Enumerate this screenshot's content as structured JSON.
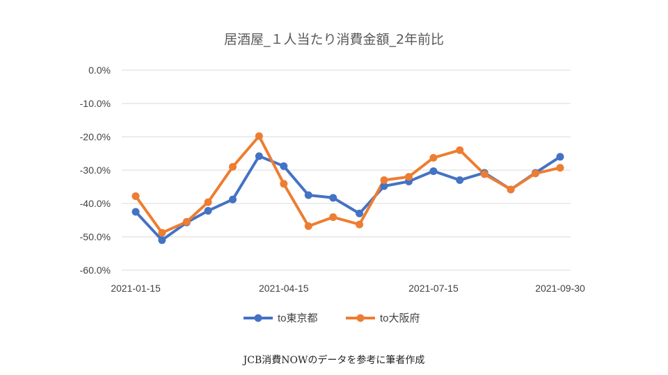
{
  "chart_data": {
    "type": "line",
    "title": "居酒屋_１人当たり消費金額_2年前比",
    "x_ticks": [
      "2021-01-15",
      "2021-04-15",
      "2021-07-15",
      "2021-09-30"
    ],
    "x": [
      "2021-01-15",
      "2021-01-31",
      "2021-02-15",
      "2021-02-28",
      "2021-03-15",
      "2021-03-31",
      "2021-04-15",
      "2021-04-30",
      "2021-05-15",
      "2021-05-31",
      "2021-06-15",
      "2021-06-30",
      "2021-07-15",
      "2021-07-31",
      "2021-08-15",
      "2021-08-31",
      "2021-09-15",
      "2021-09-30"
    ],
    "y_ticks": [
      "0.0%",
      "-10.0%",
      "-20.0%",
      "-30.0%",
      "-40.0%",
      "-50.0%",
      "-60.0%"
    ],
    "ylim": [
      -60,
      0
    ],
    "series": [
      {
        "name": "to東京都",
        "color": "#4472C4",
        "values": [
          -42.5,
          -51.0,
          -45.7,
          -42.2,
          -38.8,
          -25.8,
          -28.8,
          -37.5,
          -38.3,
          -43.0,
          -34.8,
          -33.4,
          -30.3,
          -33.0,
          -30.8,
          -35.8,
          -30.8,
          -26.0
        ]
      },
      {
        "name": "to大阪府",
        "color": "#ED7D31",
        "values": [
          -37.8,
          -48.8,
          -45.5,
          -39.6,
          -29.0,
          -19.8,
          -34.1,
          -46.8,
          -44.1,
          -46.3,
          -33.0,
          -32.0,
          -26.3,
          -24.0,
          -31.2,
          -35.8,
          -31.0,
          -29.3
        ]
      }
    ],
    "grid": true,
    "legend": "bottom"
  },
  "caption": "JCB消費NOWのデータを参考に筆者作成"
}
